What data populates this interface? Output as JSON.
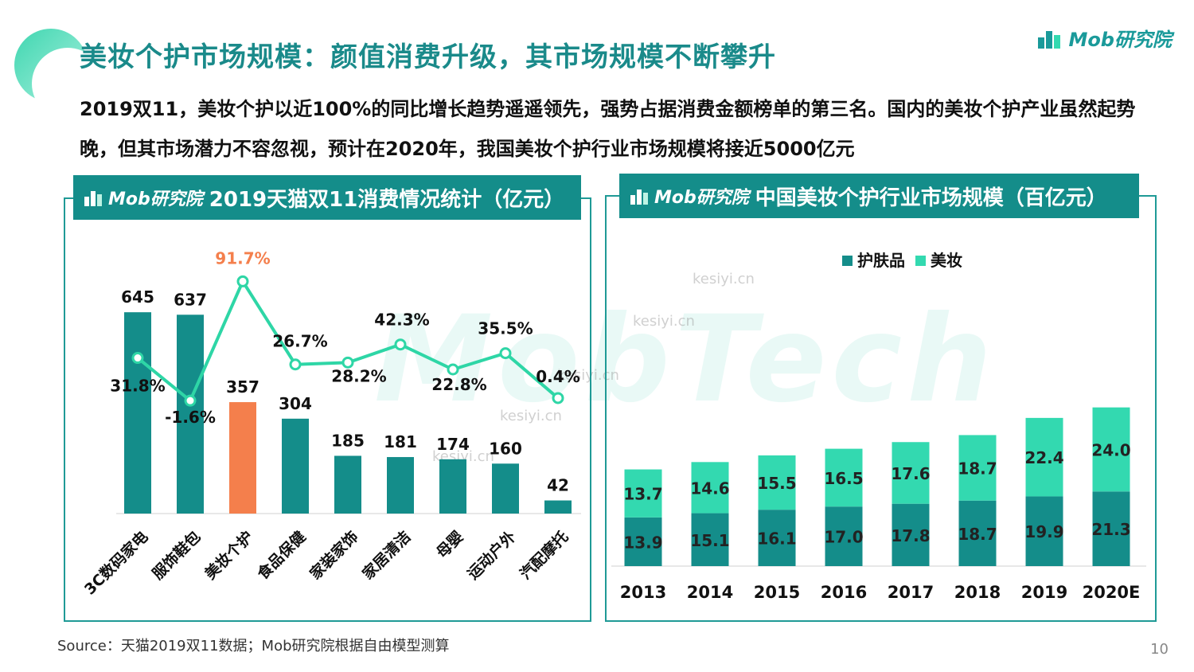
{
  "title": "美妆个护市场规模：颜值消费升级，其市场规模不断攀升",
  "subtitle": "2019双11，美妆个护以近100%的同比增长趋势遥遥领先，强势占据消费金额榜单的第三名。国内的美妆个护产业虽然起势晚，但其市场潜力不容忽视，预计在2020年，我国美妆个护行业市场规模将接近5000亿元",
  "brand": {
    "name": "Mob研究院"
  },
  "watermark": {
    "main": "MobTech",
    "site": "kesiyi.cn"
  },
  "colors": {
    "teal": "#148d8a",
    "orange": "#f47f4c",
    "line": "#2ed6a6",
    "light": "#33d9b0"
  },
  "source": "Source：天猫2019双11数据；Mob研究院根据自由模型测算",
  "page_number": "10",
  "chart_data": [
    {
      "type": "bar",
      "title": "2019天猫双11消费情况统计（亿元）",
      "categories": [
        "3C数码家电",
        "服饰鞋包",
        "美妆个护",
        "食品保健",
        "家装家饰",
        "家居清洁",
        "母婴",
        "运动户外",
        "汽配摩托"
      ],
      "values": [
        645,
        637,
        357,
        304,
        185,
        181,
        174,
        160,
        42
      ],
      "value_labels": [
        "645",
        "637",
        "357",
        "304",
        "185",
        "181",
        "174",
        "160",
        "42"
      ],
      "highlight_index": 2,
      "growth": [
        31.8,
        -1.6,
        91.7,
        26.7,
        28.2,
        42.3,
        22.8,
        35.5,
        0.4
      ],
      "growth_labels": [
        "31.8%",
        "-1.6%",
        "91.7%",
        "26.7%",
        "28.2%",
        "42.3%",
        "22.8%",
        "35.5%",
        "0.4%"
      ],
      "ylim": [
        0,
        800
      ],
      "growth_ylim": [
        -40,
        120
      ]
    },
    {
      "type": "bar",
      "stacked": true,
      "title": "中国美妆个护行业市场规模（百亿元）",
      "categories": [
        "2013",
        "2014",
        "2015",
        "2016",
        "2017",
        "2018",
        "2019",
        "2020E"
      ],
      "series": [
        {
          "name": "护肤品",
          "values": [
            13.9,
            15.1,
            16.1,
            17.0,
            17.8,
            18.7,
            19.9,
            21.3
          ],
          "labels": [
            "13.9",
            "15.1",
            "16.1",
            "17.0",
            "17.8",
            "18.7",
            "19.9",
            "21.3"
          ]
        },
        {
          "name": "美妆",
          "values": [
            13.7,
            14.6,
            15.5,
            16.5,
            17.6,
            18.7,
            22.4,
            24.0
          ],
          "labels": [
            "13.7",
            "14.6",
            "15.5",
            "16.5",
            "17.6",
            "18.7",
            "22.4",
            "24.0"
          ]
        }
      ],
      "legend": [
        "护肤品",
        "美妆"
      ],
      "ylim": [
        0,
        54
      ]
    }
  ]
}
